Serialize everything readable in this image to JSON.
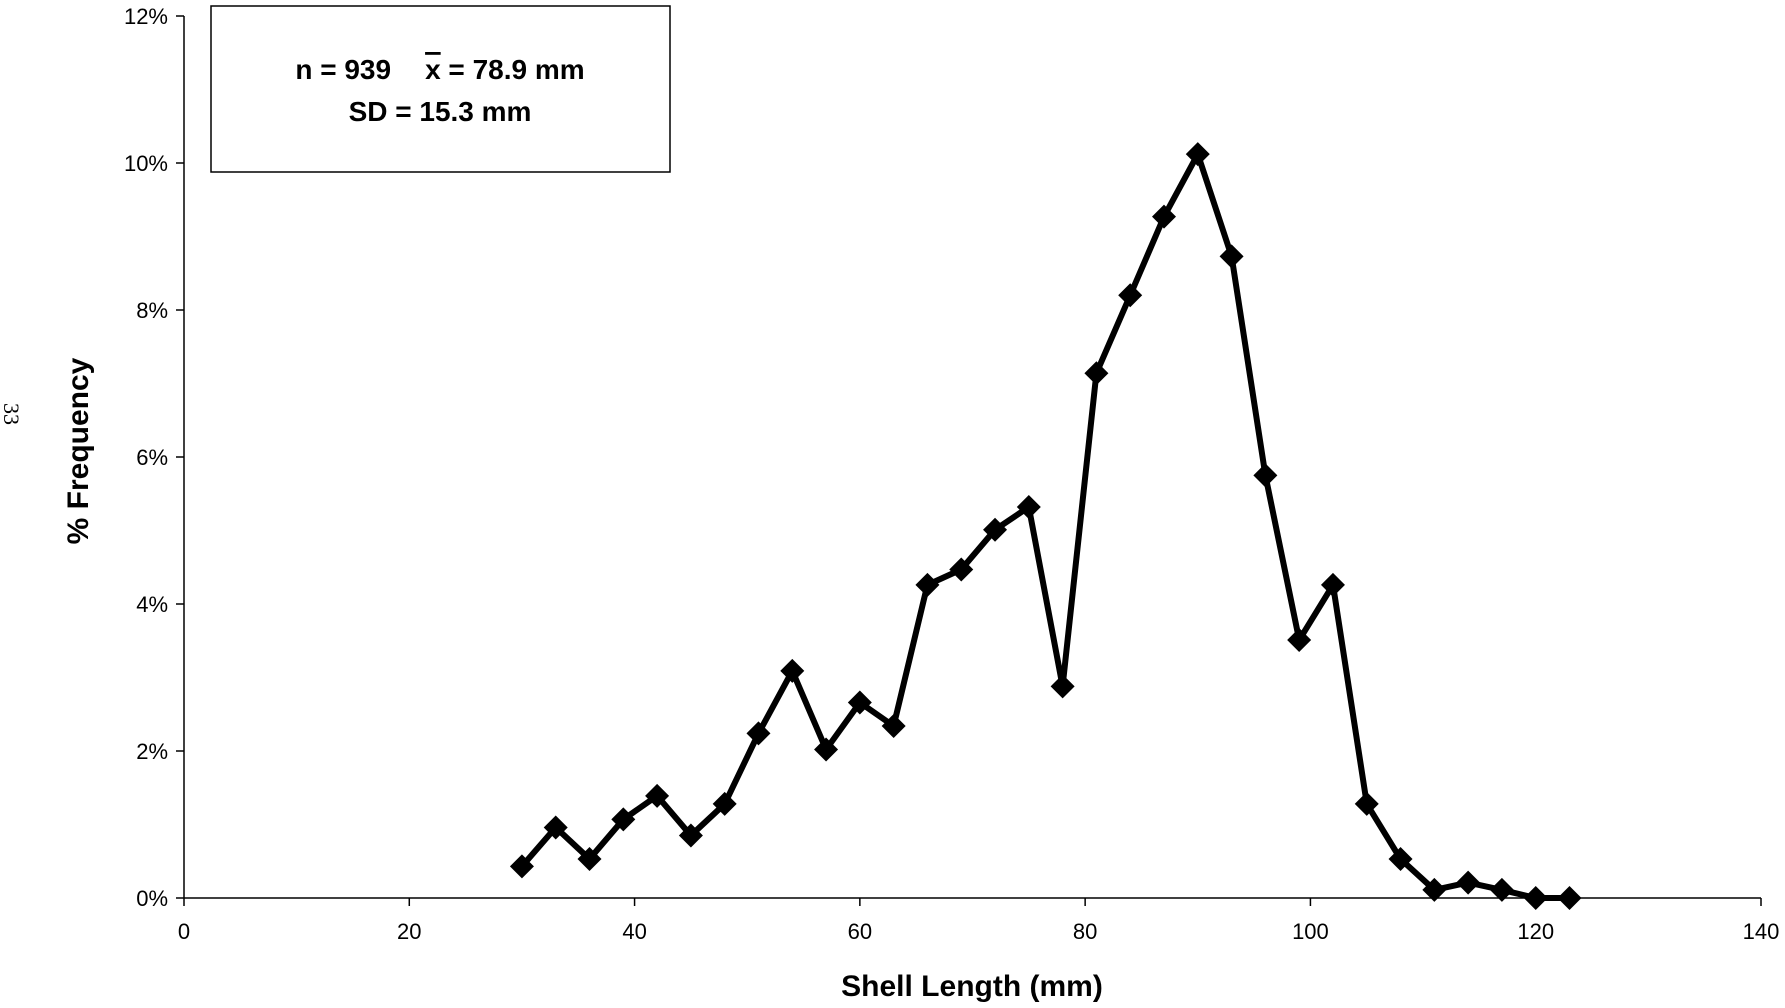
{
  "page_number": "33",
  "stats_box": {
    "line1_n": "n = 939",
    "line1_mean_symbol": "x",
    "line1_mean": " = 78.9 mm",
    "line2": "SD = 15.3 mm"
  },
  "chart_data": {
    "type": "line",
    "xlabel": "Shell Length (mm)",
    "ylabel": "% Frequency",
    "xlim": [
      0,
      140
    ],
    "ylim": [
      0,
      12
    ],
    "x_ticks": [
      0,
      20,
      40,
      60,
      80,
      100,
      120,
      140
    ],
    "x_tick_labels": [
      "0",
      "20",
      "40",
      "60",
      "80",
      "100",
      "120",
      "140"
    ],
    "y_ticks": [
      0,
      2,
      4,
      6,
      8,
      10,
      12
    ],
    "y_tick_labels": [
      "0%",
      "2%",
      "4%",
      "6%",
      "8%",
      "10%",
      "12%"
    ],
    "grid": false,
    "marker": "diamond",
    "line_color": "#000000",
    "series": [
      {
        "x": [
          30,
          33,
          36,
          39,
          42,
          45,
          48,
          51,
          54,
          57,
          60,
          63,
          66,
          69,
          72,
          75,
          78,
          81,
          84,
          87,
          90,
          93,
          96,
          99,
          102,
          105,
          108,
          111,
          114,
          117,
          120,
          123
        ],
        "values": [
          0.43,
          0.96,
          0.53,
          1.07,
          1.39,
          0.85,
          1.28,
          2.24,
          3.09,
          2.02,
          2.66,
          2.34,
          4.26,
          4.47,
          5.01,
          5.32,
          2.88,
          7.14,
          8.2,
          9.27,
          10.12,
          8.73,
          5.75,
          3.51,
          4.26,
          1.28,
          0.53,
          0.11,
          0.21,
          0.11,
          0.0,
          0.0
        ]
      }
    ]
  }
}
